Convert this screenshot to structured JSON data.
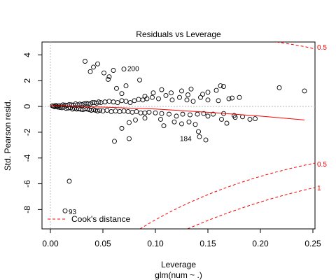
{
  "chart_data": {
    "type": "scatter",
    "title": "Residuals vs Leverage",
    "xlabel": "Leverage",
    "sub_xlabel": "glm(num ~ .)",
    "ylabel": "Std. Pearson resid.",
    "xlim": [
      -0.008,
      0.252
    ],
    "ylim": [
      -9.5,
      5.0
    ],
    "x_ticks": [
      0.0,
      0.05,
      0.1,
      0.15,
      0.2,
      0.25
    ],
    "x_tick_labels": [
      "0.00",
      "0.05",
      "0.10",
      "0.15",
      "0.20",
      "0.25"
    ],
    "y_ticks": [
      -8,
      -6,
      -4,
      -2,
      0,
      2,
      4
    ],
    "y_tick_labels": [
      "-8",
      "-6",
      "-4",
      "-2",
      "0",
      "2",
      "4"
    ],
    "colors": {
      "points": "#000000",
      "smooth": "#ff0000",
      "cooks": "#ff0000",
      "reference": "#bbbbbb"
    },
    "points": [
      {
        "x": 0.002,
        "y": 0.05
      },
      {
        "x": 0.003,
        "y": 0.02
      },
      {
        "x": 0.004,
        "y": -0.03
      },
      {
        "x": 0.005,
        "y": 0.08
      },
      {
        "x": 0.006,
        "y": 0.01
      },
      {
        "x": 0.007,
        "y": -0.05
      },
      {
        "x": 0.008,
        "y": 0.06
      },
      {
        "x": 0.009,
        "y": -0.08
      },
      {
        "x": 0.01,
        "y": 0.05
      },
      {
        "x": 0.011,
        "y": -0.1
      },
      {
        "x": 0.012,
        "y": 0.12
      },
      {
        "x": 0.013,
        "y": -0.05
      },
      {
        "x": 0.014,
        "y": 0.1
      },
      {
        "x": 0.015,
        "y": -0.15
      },
      {
        "x": 0.016,
        "y": 0.08
      },
      {
        "x": 0.017,
        "y": -0.12
      },
      {
        "x": 0.018,
        "y": 0.15
      },
      {
        "x": 0.019,
        "y": -0.1
      },
      {
        "x": 0.02,
        "y": 0.12
      },
      {
        "x": 0.021,
        "y": -0.2
      },
      {
        "x": 0.022,
        "y": 0.1
      },
      {
        "x": 0.023,
        "y": -0.15
      },
      {
        "x": 0.024,
        "y": 0.2
      },
      {
        "x": 0.025,
        "y": -0.2
      },
      {
        "x": 0.026,
        "y": 0.12
      },
      {
        "x": 0.027,
        "y": -0.18
      },
      {
        "x": 0.028,
        "y": 0.18
      },
      {
        "x": 0.029,
        "y": -0.22
      },
      {
        "x": 0.03,
        "y": 0.15
      },
      {
        "x": 0.031,
        "y": -0.25
      },
      {
        "x": 0.032,
        "y": 0.2
      },
      {
        "x": 0.033,
        "y": -0.18
      },
      {
        "x": 0.034,
        "y": 0.25
      },
      {
        "x": 0.035,
        "y": -0.2
      },
      {
        "x": 0.036,
        "y": 0.22
      },
      {
        "x": 0.037,
        "y": -0.25
      },
      {
        "x": 0.038,
        "y": 0.2
      },
      {
        "x": 0.039,
        "y": -0.3
      },
      {
        "x": 0.04,
        "y": 0.3
      },
      {
        "x": 0.041,
        "y": -0.25
      },
      {
        "x": 0.042,
        "y": 0.3
      },
      {
        "x": 0.043,
        "y": -0.3
      },
      {
        "x": 0.044,
        "y": 0.25
      },
      {
        "x": 0.045,
        "y": -0.35
      },
      {
        "x": 0.046,
        "y": 0.35
      },
      {
        "x": 0.047,
        "y": -0.3
      },
      {
        "x": 0.048,
        "y": 0.3
      },
      {
        "x": 0.05,
        "y": -0.35
      },
      {
        "x": 0.052,
        "y": 0.35
      },
      {
        "x": 0.054,
        "y": -0.3
      },
      {
        "x": 0.056,
        "y": 0.4
      },
      {
        "x": 0.058,
        "y": -0.4
      },
      {
        "x": 0.06,
        "y": 0.35
      },
      {
        "x": 0.062,
        "y": -0.35
      },
      {
        "x": 0.064,
        "y": 0.3
      },
      {
        "x": 0.066,
        "y": -0.4
      },
      {
        "x": 0.068,
        "y": 0.45
      },
      {
        "x": 0.07,
        "y": -0.35
      },
      {
        "x": 0.072,
        "y": 0.4
      },
      {
        "x": 0.074,
        "y": -0.4
      },
      {
        "x": 0.076,
        "y": 0.3
      },
      {
        "x": 0.078,
        "y": -0.45
      },
      {
        "x": 0.08,
        "y": 0.45
      },
      {
        "x": 0.082,
        "y": -0.4
      },
      {
        "x": 0.084,
        "y": 0.55
      },
      {
        "x": 0.086,
        "y": -0.5
      },
      {
        "x": 0.088,
        "y": 0.5
      },
      {
        "x": 0.09,
        "y": -0.5
      },
      {
        "x": 0.092,
        "y": 0.6
      },
      {
        "x": 0.094,
        "y": -0.45
      },
      {
        "x": 0.097,
        "y": 0.7
      },
      {
        "x": 0.1,
        "y": -0.5
      },
      {
        "x": 0.103,
        "y": 0.6
      },
      {
        "x": 0.106,
        "y": -0.55
      },
      {
        "x": 0.11,
        "y": 0.85
      },
      {
        "x": 0.113,
        "y": -0.6
      },
      {
        "x": 0.116,
        "y": 0.5
      },
      {
        "x": 0.12,
        "y": -0.75
      },
      {
        "x": 0.123,
        "y": 0.7
      },
      {
        "x": 0.126,
        "y": -0.6
      },
      {
        "x": 0.13,
        "y": 0.5
      },
      {
        "x": 0.133,
        "y": -0.65
      },
      {
        "x": 0.136,
        "y": 0.4
      },
      {
        "x": 0.14,
        "y": -0.6
      },
      {
        "x": 0.143,
        "y": 0.7
      },
      {
        "x": 0.146,
        "y": -0.55
      },
      {
        "x": 0.15,
        "y": 0.5
      },
      {
        "x": 0.155,
        "y": -0.6
      },
      {
        "x": 0.16,
        "y": 0.45
      },
      {
        "x": 0.165,
        "y": -0.55
      },
      {
        "x": 0.17,
        "y": 0.6
      },
      {
        "x": 0.175,
        "y": -0.7
      },
      {
        "x": 0.018,
        "y": -5.8
      },
      {
        "x": 0.014,
        "y": -8.1
      },
      {
        "x": 0.07,
        "y": 2.9
      },
      {
        "x": 0.061,
        "y": -2.7
      },
      {
        "x": 0.033,
        "y": 3.5
      },
      {
        "x": 0.045,
        "y": 3.3
      },
      {
        "x": 0.041,
        "y": 3.05
      },
      {
        "x": 0.038,
        "y": 2.7
      },
      {
        "x": 0.051,
        "y": 2.6
      },
      {
        "x": 0.056,
        "y": 2.3
      },
      {
        "x": 0.055,
        "y": 2.1
      },
      {
        "x": 0.06,
        "y": 2.8
      },
      {
        "x": 0.085,
        "y": 2.05
      },
      {
        "x": 0.072,
        "y": 1.6
      },
      {
        "x": 0.068,
        "y": 1.0
      },
      {
        "x": 0.063,
        "y": 1.4
      },
      {
        "x": 0.09,
        "y": 0.8
      },
      {
        "x": 0.098,
        "y": 1.05
      },
      {
        "x": 0.106,
        "y": 1.3
      },
      {
        "x": 0.115,
        "y": 1.05
      },
      {
        "x": 0.125,
        "y": 1.2
      },
      {
        "x": 0.131,
        "y": 0.9
      },
      {
        "x": 0.15,
        "y": 1.1
      },
      {
        "x": 0.162,
        "y": 1.6
      },
      {
        "x": 0.165,
        "y": 1.55
      },
      {
        "x": 0.158,
        "y": 1.25
      },
      {
        "x": 0.145,
        "y": 0.95
      },
      {
        "x": 0.134,
        "y": 1.35
      },
      {
        "x": 0.18,
        "y": 0.7
      },
      {
        "x": 0.218,
        "y": 1.45
      },
      {
        "x": 0.242,
        "y": 1.2
      },
      {
        "x": 0.173,
        "y": 0.65
      },
      {
        "x": 0.075,
        "y": -1.25
      },
      {
        "x": 0.068,
        "y": -1.7
      },
      {
        "x": 0.081,
        "y": -1.05
      },
      {
        "x": 0.09,
        "y": -0.9
      },
      {
        "x": 0.105,
        "y": -1.0
      },
      {
        "x": 0.108,
        "y": -1.5
      },
      {
        "x": 0.118,
        "y": -1.2
      },
      {
        "x": 0.125,
        "y": -1.35
      },
      {
        "x": 0.132,
        "y": -1.2
      },
      {
        "x": 0.138,
        "y": -1.4
      },
      {
        "x": 0.141,
        "y": -1.95
      },
      {
        "x": 0.142,
        "y": -2.35
      },
      {
        "x": 0.15,
        "y": -0.75
      },
      {
        "x": 0.163,
        "y": -1.0
      },
      {
        "x": 0.168,
        "y": -1.3
      },
      {
        "x": 0.176,
        "y": -0.85
      },
      {
        "x": 0.183,
        "y": -0.8
      },
      {
        "x": 0.19,
        "y": -1.0
      },
      {
        "x": 0.195,
        "y": -0.95
      },
      {
        "x": 0.148,
        "y": -2.6
      },
      {
        "x": 0.075,
        "y": -2.5
      }
    ],
    "point_labels": [
      {
        "text": "200",
        "x": 0.07,
        "y": 2.9
      },
      {
        "text": "184",
        "x": 0.142,
        "y": -2.35
      },
      {
        "text": "93",
        "x": 0.014,
        "y": -8.1
      }
    ],
    "smooth_line": [
      [
        0.0,
        0.05
      ],
      [
        0.05,
        -0.05
      ],
      [
        0.1,
        -0.2
      ],
      [
        0.15,
        -0.45
      ],
      [
        0.2,
        -0.75
      ],
      [
        0.242,
        -1.05
      ]
    ],
    "cooks_contours": [
      {
        "label": "0.5",
        "side": "upper"
      },
      {
        "label": "0.5",
        "side": "lower"
      },
      {
        "label": "1",
        "side": "lower"
      }
    ],
    "legend": {
      "entries": [
        "Cook's distance"
      ],
      "position": "bottom-left"
    }
  }
}
